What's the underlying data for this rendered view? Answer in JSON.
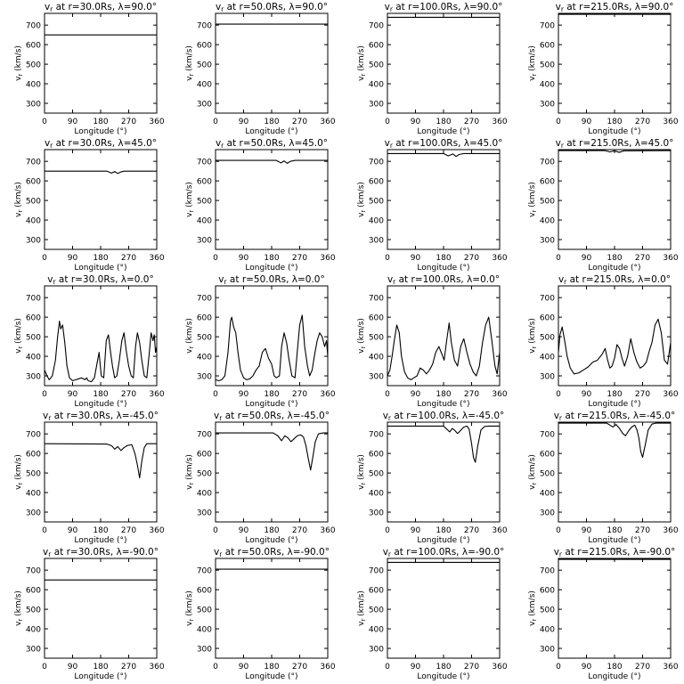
{
  "figure": {
    "xlabel": "Longitude (°)",
    "ylabel": "vr (km/s)",
    "xlim": [
      0,
      360
    ],
    "ylim": [
      250,
      760
    ],
    "xticks": [
      0,
      90,
      180,
      270,
      360
    ],
    "yticks": [
      300,
      400,
      500,
      600,
      700
    ]
  },
  "chart_data": [
    {
      "type": "line",
      "title": "vr at r=30.0Rs, λ=90.0°",
      "radius_label": "r=30.0Rs",
      "latitude_label": "λ=90.0°",
      "xlabel": "Longitude (°)",
      "ylabel": "vr (km/s)",
      "xlim": [
        0,
        360
      ],
      "ylim": [
        250,
        760
      ],
      "series": [
        {
          "x": [
            0,
            360
          ],
          "y": [
            650,
            650
          ]
        }
      ]
    },
    {
      "type": "line",
      "title": "vr at r=50.0Rs, λ=90.0°",
      "radius_label": "r=50.0Rs",
      "latitude_label": "λ=90.0°",
      "xlabel": "Longitude (°)",
      "ylabel": "vr (km/s)",
      "xlim": [
        0,
        360
      ],
      "ylim": [
        250,
        760
      ],
      "series": [
        {
          "x": [
            0,
            360
          ],
          "y": [
            705,
            705
          ]
        }
      ]
    },
    {
      "type": "line",
      "title": "vr at r=100.0Rs, λ=90.0°",
      "radius_label": "r=100.0Rs",
      "latitude_label": "λ=90.0°",
      "xlabel": "Longitude (°)",
      "ylabel": "vr (km/s)",
      "xlim": [
        0,
        360
      ],
      "ylim": [
        250,
        760
      ],
      "series": [
        {
          "x": [
            0,
            360
          ],
          "y": [
            740,
            740
          ]
        }
      ]
    },
    {
      "type": "line",
      "title": "vr at r=215.0Rs, λ=90.0°",
      "radius_label": "r=215.0Rs",
      "latitude_label": "λ=90.0°",
      "xlabel": "Longitude (°)",
      "ylabel": "vr (km/s)",
      "xlim": [
        0,
        360
      ],
      "ylim": [
        250,
        760
      ],
      "series": [
        {
          "x": [
            0,
            360
          ],
          "y": [
            755,
            755
          ]
        }
      ]
    },
    {
      "type": "line",
      "title": "vr at r=30.0Rs, λ=45.0°",
      "radius_label": "r=30.0Rs",
      "latitude_label": "λ=45.0°",
      "xlabel": "Longitude (°)",
      "ylabel": "vr (km/s)",
      "xlim": [
        0,
        360
      ],
      "ylim": [
        250,
        760
      ],
      "series": [
        {
          "x": [
            0,
            200,
            215,
            225,
            235,
            245,
            255,
            360
          ],
          "y": [
            650,
            650,
            640,
            648,
            638,
            646,
            650,
            650
          ]
        }
      ]
    },
    {
      "type": "line",
      "title": "vr at r=50.0Rs, λ=45.0°",
      "radius_label": "r=50.0Rs",
      "latitude_label": "λ=45.0°",
      "xlabel": "Longitude (°)",
      "ylabel": "vr (km/s)",
      "xlim": [
        0,
        360
      ],
      "ylim": [
        250,
        760
      ],
      "series": [
        {
          "x": [
            0,
            195,
            210,
            220,
            230,
            240,
            255,
            360
          ],
          "y": [
            705,
            705,
            692,
            702,
            690,
            700,
            705,
            705
          ]
        }
      ]
    },
    {
      "type": "line",
      "title": "vr at r=100.0Rs, λ=45.0°",
      "radius_label": "r=100.0Rs",
      "latitude_label": "λ=45.0°",
      "xlabel": "Longitude (°)",
      "ylabel": "vr (km/s)",
      "xlim": [
        0,
        360
      ],
      "ylim": [
        250,
        760
      ],
      "series": [
        {
          "x": [
            0,
            180,
            195,
            210,
            220,
            230,
            245,
            360
          ],
          "y": [
            740,
            740,
            728,
            738,
            725,
            735,
            740,
            740
          ]
        }
      ]
    },
    {
      "type": "line",
      "title": "vr at r=215.0Rs, λ=45.0°",
      "radius_label": "r=215.0Rs",
      "latitude_label": "λ=45.0°",
      "xlabel": "Longitude (°)",
      "ylabel": "vr (km/s)",
      "xlim": [
        0,
        360
      ],
      "ylim": [
        250,
        760
      ],
      "series": [
        {
          "x": [
            0,
            150,
            165,
            180,
            195,
            210,
            360
          ],
          "y": [
            755,
            755,
            748,
            754,
            746,
            754,
            755
          ]
        }
      ]
    },
    {
      "type": "line",
      "title": "vr at r=30.0Rs, λ=0.0°",
      "radius_label": "r=30.0Rs",
      "latitude_label": "λ=0.0°",
      "xlabel": "Longitude (°)",
      "ylabel": "vr (km/s)",
      "xlim": [
        0,
        360
      ],
      "ylim": [
        250,
        760
      ],
      "series": [
        {
          "x": [
            0,
            8,
            15,
            25,
            35,
            42,
            48,
            52,
            58,
            65,
            72,
            80,
            90,
            100,
            110,
            118,
            125,
            130,
            135,
            140,
            150,
            160,
            168,
            175,
            182,
            190,
            198,
            205,
            212,
            218,
            225,
            232,
            240,
            248,
            255,
            262,
            270,
            278,
            285,
            292,
            298,
            305,
            312,
            320,
            328,
            335,
            342,
            348,
            352,
            356,
            360
          ],
          "y": [
            330,
            300,
            280,
            300,
            380,
            500,
            580,
            540,
            560,
            470,
            350,
            290,
            275,
            280,
            285,
            290,
            285,
            280,
            290,
            275,
            270,
            290,
            360,
            420,
            300,
            290,
            480,
            510,
            420,
            350,
            290,
            300,
            380,
            480,
            520,
            430,
            350,
            300,
            290,
            450,
            520,
            470,
            380,
            300,
            290,
            400,
            520,
            480,
            510,
            420,
            450
          ]
        }
      ]
    },
    {
      "type": "line",
      "title": "vr at r=50.0Rs, λ=0.0°",
      "radius_label": "r=50.0Rs",
      "latitude_label": "λ=0.0°",
      "xlabel": "Longitude (°)",
      "ylabel": "vr (km/s)",
      "xlim": [
        0,
        360
      ],
      "ylim": [
        250,
        760
      ],
      "series": [
        {
          "x": [
            0,
            10,
            20,
            30,
            40,
            48,
            52,
            58,
            65,
            72,
            80,
            90,
            100,
            110,
            120,
            130,
            140,
            150,
            160,
            170,
            180,
            188,
            195,
            205,
            212,
            220,
            228,
            236,
            245,
            255,
            262,
            270,
            278,
            286,
            295,
            302,
            310,
            318,
            326,
            334,
            342,
            350,
            356,
            360
          ],
          "y": [
            280,
            275,
            280,
            300,
            420,
            580,
            600,
            550,
            520,
            420,
            330,
            290,
            280,
            285,
            300,
            330,
            350,
            420,
            440,
            390,
            360,
            300,
            290,
            300,
            450,
            520,
            470,
            380,
            300,
            290,
            420,
            560,
            610,
            450,
            350,
            300,
            330,
            410,
            480,
            520,
            500,
            450,
            480,
            400
          ]
        }
      ]
    },
    {
      "type": "line",
      "title": "vr at r=100.0Rs, λ=0.0°",
      "radius_label": "r=100.0Rs",
      "latitude_label": "λ=0.0°",
      "xlabel": "Longitude (°)",
      "ylabel": "vr (km/s)",
      "xlim": [
        0,
        360
      ],
      "ylim": [
        250,
        760
      ],
      "series": [
        {
          "x": [
            0,
            8,
            15,
            22,
            30,
            38,
            45,
            55,
            65,
            75,
            85,
            95,
            105,
            115,
            125,
            135,
            145,
            155,
            165,
            175,
            182,
            190,
            198,
            205,
            215,
            225,
            235,
            245,
            255,
            265,
            275,
            285,
            295,
            305,
            315,
            325,
            335,
            345,
            352,
            360
          ],
          "y": [
            300,
            330,
            400,
            480,
            560,
            520,
            400,
            320,
            290,
            280,
            290,
            300,
            340,
            330,
            310,
            330,
            360,
            420,
            450,
            410,
            380,
            480,
            570,
            470,
            380,
            350,
            450,
            490,
            420,
            360,
            320,
            300,
            350,
            470,
            560,
            600,
            480,
            350,
            310,
            420
          ]
        }
      ]
    },
    {
      "type": "line",
      "title": "vr at r=215.0Rs, λ=0.0°",
      "radius_label": "r=215.0Rs",
      "latitude_label": "λ=0.0°",
      "xlabel": "Longitude (°)",
      "ylabel": "vr (km/s)",
      "xlim": [
        0,
        360
      ],
      "ylim": [
        250,
        760
      ],
      "series": [
        {
          "x": [
            0,
            5,
            12,
            20,
            28,
            38,
            50,
            65,
            80,
            95,
            110,
            125,
            140,
            150,
            158,
            165,
            172,
            180,
            188,
            196,
            204,
            212,
            222,
            232,
            242,
            252,
            262,
            272,
            282,
            292,
            300,
            310,
            320,
            330,
            340,
            350,
            360
          ],
          "y": [
            420,
            510,
            550,
            480,
            400,
            340,
            310,
            315,
            330,
            345,
            370,
            380,
            410,
            440,
            380,
            340,
            350,
            390,
            460,
            440,
            390,
            350,
            400,
            490,
            420,
            370,
            340,
            350,
            370,
            430,
            470,
            560,
            590,
            520,
            380,
            360,
            470
          ]
        }
      ]
    },
    {
      "type": "line",
      "title": "vr at r=30.0Rs, λ=-45.0°",
      "radius_label": "r=30.0Rs",
      "latitude_label": "λ=-45.0°",
      "xlabel": "Longitude (°)",
      "ylabel": "vr (km/s)",
      "xlim": [
        0,
        360
      ],
      "ylim": [
        250,
        760
      ],
      "series": [
        {
          "x": [
            0,
            200,
            215,
            225,
            235,
            245,
            255,
            265,
            280,
            290,
            298,
            305,
            312,
            320,
            328,
            340,
            360
          ],
          "y": [
            650,
            648,
            640,
            622,
            635,
            615,
            630,
            640,
            645,
            600,
            540,
            475,
            560,
            630,
            650,
            650,
            650
          ]
        }
      ]
    },
    {
      "type": "line",
      "title": "vr at r=50.0Rs, λ=-45.0°",
      "radius_label": "r=50.0Rs",
      "latitude_label": "λ=-45.0°",
      "xlabel": "Longitude (°)",
      "ylabel": "vr (km/s)",
      "xlim": [
        0,
        360
      ],
      "ylim": [
        250,
        760
      ],
      "series": [
        {
          "x": [
            0,
            185,
            200,
            212,
            222,
            232,
            242,
            252,
            262,
            272,
            282,
            290,
            298,
            305,
            312,
            320,
            330,
            345,
            360
          ],
          "y": [
            705,
            705,
            690,
            665,
            690,
            680,
            660,
            675,
            690,
            695,
            685,
            640,
            570,
            515,
            580,
            660,
            700,
            705,
            705
          ]
        }
      ]
    },
    {
      "type": "line",
      "title": "vr at r=100.0Rs, λ=-45.0°",
      "radius_label": "r=100.0Rs",
      "latitude_label": "λ=-45.0°",
      "xlabel": "Longitude (°)",
      "ylabel": "vr (km/s)",
      "xlim": [
        0,
        360
      ],
      "ylim": [
        250,
        760
      ],
      "series": [
        {
          "x": [
            0,
            180,
            190,
            200,
            208,
            216,
            225,
            235,
            245,
            255,
            262,
            270,
            276,
            282,
            290,
            300,
            312,
            325,
            360
          ],
          "y": [
            740,
            740,
            725,
            710,
            728,
            718,
            702,
            718,
            735,
            740,
            725,
            650,
            580,
            555,
            640,
            720,
            738,
            740,
            740
          ]
        }
      ]
    },
    {
      "type": "line",
      "title": "vr at r=215.0Rs, λ=-45.0°",
      "radius_label": "r=215.0Rs",
      "latitude_label": "λ=-45.0°",
      "xlabel": "Longitude (°)",
      "ylabel": "vr (km/s)",
      "xlim": [
        0,
        360
      ],
      "ylim": [
        250,
        760
      ],
      "series": [
        {
          "x": [
            0,
            155,
            165,
            175,
            185,
            195,
            205,
            215,
            225,
            235,
            245,
            252,
            258,
            264,
            270,
            278,
            288,
            300,
            312,
            325,
            360
          ],
          "y": [
            755,
            755,
            745,
            735,
            748,
            730,
            705,
            690,
            715,
            735,
            745,
            720,
            680,
            610,
            580,
            640,
            720,
            750,
            755,
            755,
            755
          ]
        }
      ]
    },
    {
      "type": "line",
      "title": "vr at r=30.0Rs, λ=-90.0°",
      "radius_label": "r=30.0Rs",
      "latitude_label": "λ=-90.0°",
      "xlabel": "Longitude (°)",
      "ylabel": "vr (km/s)",
      "xlim": [
        0,
        360
      ],
      "ylim": [
        250,
        760
      ],
      "series": [
        {
          "x": [
            0,
            360
          ],
          "y": [
            650,
            650
          ]
        }
      ]
    },
    {
      "type": "line",
      "title": "vr at r=50.0Rs, λ=-90.0°",
      "radius_label": "r=50.0Rs",
      "latitude_label": "λ=-90.0°",
      "xlabel": "Longitude (°)",
      "ylabel": "vr (km/s)",
      "xlim": [
        0,
        360
      ],
      "ylim": [
        250,
        760
      ],
      "series": [
        {
          "x": [
            0,
            360
          ],
          "y": [
            705,
            705
          ]
        }
      ]
    },
    {
      "type": "line",
      "title": "vr at r=100.0Rs, λ=-90.0°",
      "radius_label": "r=100.0Rs",
      "latitude_label": "λ=-90.0°",
      "xlabel": "Longitude (°)",
      "ylabel": "vr (km/s)",
      "xlim": [
        0,
        360
      ],
      "ylim": [
        250,
        760
      ],
      "series": [
        {
          "x": [
            0,
            360
          ],
          "y": [
            740,
            740
          ]
        }
      ]
    },
    {
      "type": "line",
      "title": "vr at r=215.0Rs, λ=-90.0°",
      "radius_label": "r=215.0Rs",
      "latitude_label": "λ=-90.0°",
      "xlabel": "Longitude (°)",
      "ylabel": "vr (km/s)",
      "xlim": [
        0,
        360
      ],
      "ylim": [
        250,
        760
      ],
      "series": [
        {
          "x": [
            0,
            360
          ],
          "y": [
            755,
            755
          ]
        }
      ]
    }
  ]
}
